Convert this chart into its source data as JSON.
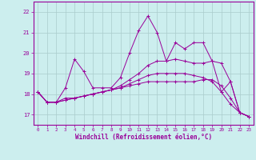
{
  "x_values": [
    0,
    1,
    2,
    3,
    4,
    5,
    6,
    7,
    8,
    9,
    10,
    11,
    12,
    13,
    14,
    15,
    16,
    17,
    18,
    19,
    20,
    21,
    22,
    23
  ],
  "line1": [
    18.1,
    17.6,
    17.6,
    18.3,
    19.7,
    19.1,
    18.3,
    18.3,
    18.3,
    18.8,
    20.0,
    21.1,
    21.8,
    21.0,
    19.6,
    20.5,
    20.2,
    20.5,
    20.5,
    19.6,
    18.1,
    18.6,
    17.1,
    16.9
  ],
  "line2": [
    18.1,
    17.6,
    17.6,
    17.8,
    17.8,
    17.9,
    18.0,
    18.1,
    18.2,
    18.3,
    18.4,
    18.5,
    18.6,
    18.6,
    18.6,
    18.6,
    18.6,
    18.6,
    18.7,
    18.7,
    18.4,
    17.8,
    17.1,
    16.9
  ],
  "line3": [
    18.1,
    17.6,
    17.6,
    17.7,
    17.8,
    17.9,
    18.0,
    18.1,
    18.2,
    18.3,
    18.5,
    18.7,
    18.9,
    19.0,
    19.0,
    19.0,
    19.0,
    18.9,
    18.8,
    18.6,
    18.1,
    17.5,
    17.1,
    16.9
  ],
  "line4": [
    18.1,
    17.6,
    17.6,
    17.7,
    17.8,
    17.9,
    18.0,
    18.1,
    18.2,
    18.4,
    18.7,
    19.0,
    19.4,
    19.6,
    19.6,
    19.7,
    19.6,
    19.5,
    19.5,
    19.6,
    19.5,
    18.6,
    17.1,
    16.9
  ],
  "line_color": "#990099",
  "bg_color": "#cceeee",
  "grid_color": "#aacccc",
  "xlabel": "Windchill (Refroidissement éolien,°C)",
  "ylim": [
    16.5,
    22.5
  ],
  "xlim": [
    -0.5,
    23.5
  ],
  "yticks": [
    17,
    18,
    19,
    20,
    21,
    22
  ],
  "xticks": [
    0,
    1,
    2,
    3,
    4,
    5,
    6,
    7,
    8,
    9,
    10,
    11,
    12,
    13,
    14,
    15,
    16,
    17,
    18,
    19,
    20,
    21,
    22,
    23
  ]
}
